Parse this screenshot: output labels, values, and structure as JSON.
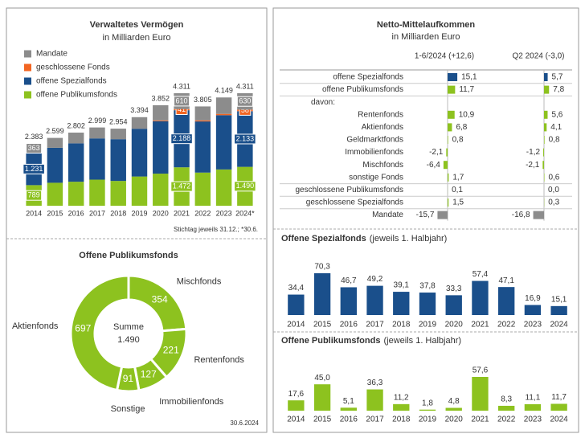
{
  "chart_data": [
    {
      "type": "bar",
      "stacked": true,
      "title": "Verwaltetes Vermögen",
      "subtitle": "in Milliarden Euro",
      "categories": [
        "2014",
        "2015",
        "2016",
        "2017",
        "2018",
        "2019",
        "2020",
        "2021",
        "2022",
        "2023",
        "2024*"
      ],
      "series": [
        {
          "name": "offene Publikumsfonds",
          "color": "#8dc21f",
          "values": [
            789,
            880,
            920,
            1000,
            950,
            1120,
            1230,
            1472,
            1270,
            1390,
            1490
          ],
          "value_labels": [
            "789",
            null,
            null,
            null,
            null,
            null,
            null,
            "1.472",
            null,
            null,
            "1.490"
          ]
        },
        {
          "name": "offene Spezialfonds",
          "color": "#1a4f8b",
          "values": [
            1231,
            1340,
            1470,
            1580,
            1600,
            1830,
            2010,
            2188,
            1960,
            2080,
            2133
          ],
          "value_labels": [
            "1.231",
            null,
            null,
            null,
            null,
            null,
            null,
            "2.188",
            null,
            null,
            "2.133"
          ]
        },
        {
          "name": "geschlossene Fonds",
          "color": "#f26522",
          "values": [
            0,
            0,
            0,
            0,
            0,
            0,
            30,
            41,
            40,
            50,
            58
          ],
          "value_labels": [
            null,
            null,
            null,
            null,
            null,
            null,
            null,
            "41",
            null,
            null,
            "58"
          ]
        },
        {
          "name": "Mandate",
          "color": "#8c8c8c",
          "values": [
            363,
            379,
            412,
            419,
            404,
            444,
            582,
            610,
            535,
            629,
            630
          ],
          "value_labels": [
            "363",
            null,
            null,
            null,
            null,
            null,
            null,
            "610",
            null,
            null,
            "630"
          ]
        }
      ],
      "totals": {
        "values": [
          2383,
          2599,
          2802,
          2999,
          2954,
          3394,
          3852,
          4311,
          3805,
          4149,
          4311
        ],
        "value_labels": [
          "2.383",
          "2.599",
          "2.802",
          "2.999",
          "2.954",
          "3.394",
          "3.852",
          "4.311",
          "3.805",
          "4.149",
          "4.311"
        ]
      },
      "note": "Stichtag jeweils 31.12.; *30.6."
    },
    {
      "type": "pie",
      "title": "Offene Publikumsfonds",
      "categories": [
        "Mischfonds",
        "Rentenfonds",
        "Immobilienfonds",
        "Sonstige",
        "Aktienfonds"
      ],
      "values": [
        354,
        221,
        127,
        91,
        697
      ],
      "color": "#8dc21f",
      "center_label": "Summe",
      "total": 1490,
      "total_label": "1.490",
      "date": "30.6.2024"
    },
    {
      "type": "bar",
      "title": "Offene Spezialfonds",
      "subtitle": "(jeweils 1. Halbjahr)",
      "categories": [
        "2014",
        "2015",
        "2016",
        "2017",
        "2018",
        "2019",
        "2020",
        "2021",
        "2022",
        "2023",
        "2024"
      ],
      "values": [
        34.4,
        70.3,
        46.7,
        49.2,
        39.1,
        37.8,
        33.3,
        57.4,
        47.1,
        16.9,
        15.1
      ],
      "value_labels": [
        "34,4",
        "70,3",
        "46,7",
        "49,2",
        "39,1",
        "37,8",
        "33,3",
        "57,4",
        "47,1",
        "16,9",
        "15,1"
      ],
      "color": "#1a4f8b"
    },
    {
      "type": "bar",
      "title": "Offene Publikumsfonds",
      "subtitle": "(jeweils 1. Halbjahr)",
      "categories": [
        "2014",
        "2015",
        "2016",
        "2017",
        "2018",
        "2019",
        "2020",
        "2021",
        "2022",
        "2023",
        "2024"
      ],
      "values": [
        17.6,
        45.0,
        5.1,
        36.3,
        11.2,
        1.8,
        4.8,
        57.6,
        8.3,
        11.1,
        11.7
      ],
      "value_labels": [
        "17,6",
        "45,0",
        "5,1",
        "36,3",
        "11,2",
        "1,8",
        "4,8",
        "57,6",
        "8,3",
        "11,1",
        "11,7"
      ],
      "color": "#8dc21f"
    }
  ],
  "net_flows": {
    "title": "Netto-Mittelaufkommen",
    "subtitle": "in Milliarden Euro",
    "columns": [
      "1-6/2024 (+12,6)",
      "Q2 2024 (-3,0)"
    ],
    "rows": [
      {
        "label": "offene Spezialfonds",
        "values": [
          15.1,
          5.7
        ],
        "value_labels": [
          "15,1",
          "5,7"
        ],
        "color": "#1a4f8b"
      },
      {
        "label": "offene Publikumsfonds",
        "values": [
          11.7,
          7.8
        ],
        "value_labels": [
          "11,7",
          "7,8"
        ],
        "color": "#8dc21f"
      },
      {
        "label": "davon:"
      },
      {
        "label": "Rentenfonds",
        "values": [
          10.9,
          5.6
        ],
        "value_labels": [
          "10,9",
          "5,6"
        ],
        "color": "#8dc21f"
      },
      {
        "label": "Aktienfonds",
        "values": [
          6.8,
          4.1
        ],
        "value_labels": [
          "6,8",
          "4,1"
        ],
        "color": "#8dc21f"
      },
      {
        "label": "Geldmarktfonds",
        "values": [
          0.8,
          0.8
        ],
        "value_labels": [
          "0,8",
          "0,8"
        ],
        "color": "#8dc21f"
      },
      {
        "label": "Immobilienfonds",
        "values": [
          -2.1,
          -1.2
        ],
        "value_labels": [
          "-2,1",
          "-1,2"
        ],
        "color": "#8dc21f"
      },
      {
        "label": "Mischfonds",
        "values": [
          -6.4,
          -2.1
        ],
        "value_labels": [
          "-6,4",
          "-2,1"
        ],
        "color": "#8dc21f"
      },
      {
        "label": "sonstige Fonds",
        "values": [
          1.7,
          0.6
        ],
        "value_labels": [
          "1,7",
          "0,6"
        ],
        "color": "#8dc21f"
      },
      {
        "label": "geschlossene Publikumsfonds",
        "values": [
          0.1,
          0.0
        ],
        "value_labels": [
          "0,1",
          "0,0"
        ],
        "color": "#8dc21f"
      },
      {
        "label": "geschlossene Spezialfonds",
        "values": [
          1.5,
          0.3
        ],
        "value_labels": [
          "1,5",
          "0,3"
        ],
        "color": "#8dc21f"
      },
      {
        "label": "Mandate",
        "values": [
          -15.7,
          -16.8
        ],
        "value_labels": [
          "-15,7",
          "-16,8"
        ],
        "color": "#8c8c8c"
      }
    ]
  }
}
